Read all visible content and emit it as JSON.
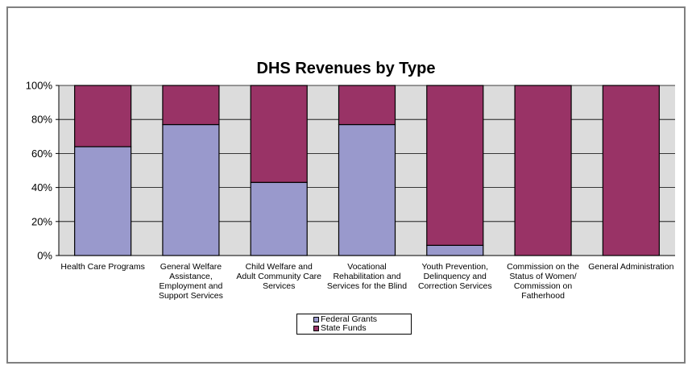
{
  "chart_data": {
    "type": "bar",
    "stacked": true,
    "percent": true,
    "title": "DHS Revenues by Type",
    "categories": [
      [
        "Health Care Programs"
      ],
      [
        "General Welfare",
        "Assistance,",
        "Employment and",
        "Support Services"
      ],
      [
        "Child Welfare and",
        "Adult Community Care",
        "Services"
      ],
      [
        "Vocational",
        "Rehabilitation and",
        "Services for the Blind"
      ],
      [
        "Youth Prevention,",
        "Delinquency and",
        "Correction Services"
      ],
      [
        "Commission on the",
        "Status of Women/",
        "Commission on",
        "Fatherhood"
      ],
      [
        "General Administration"
      ]
    ],
    "series": [
      {
        "name": "Federal Grants",
        "color": "#9999cc",
        "values": [
          64,
          77,
          43,
          77,
          6,
          0,
          0
        ]
      },
      {
        "name": "State Funds",
        "color": "#993366",
        "values": [
          36,
          23,
          57,
          23,
          94,
          100,
          100
        ]
      }
    ],
    "ylim": [
      0,
      100
    ],
    "yticks": [
      "0%",
      "20%",
      "40%",
      "60%",
      "80%",
      "100%"
    ],
    "grid": true,
    "plot_background": "#c0c0c0",
    "legend": "bottom-center"
  }
}
